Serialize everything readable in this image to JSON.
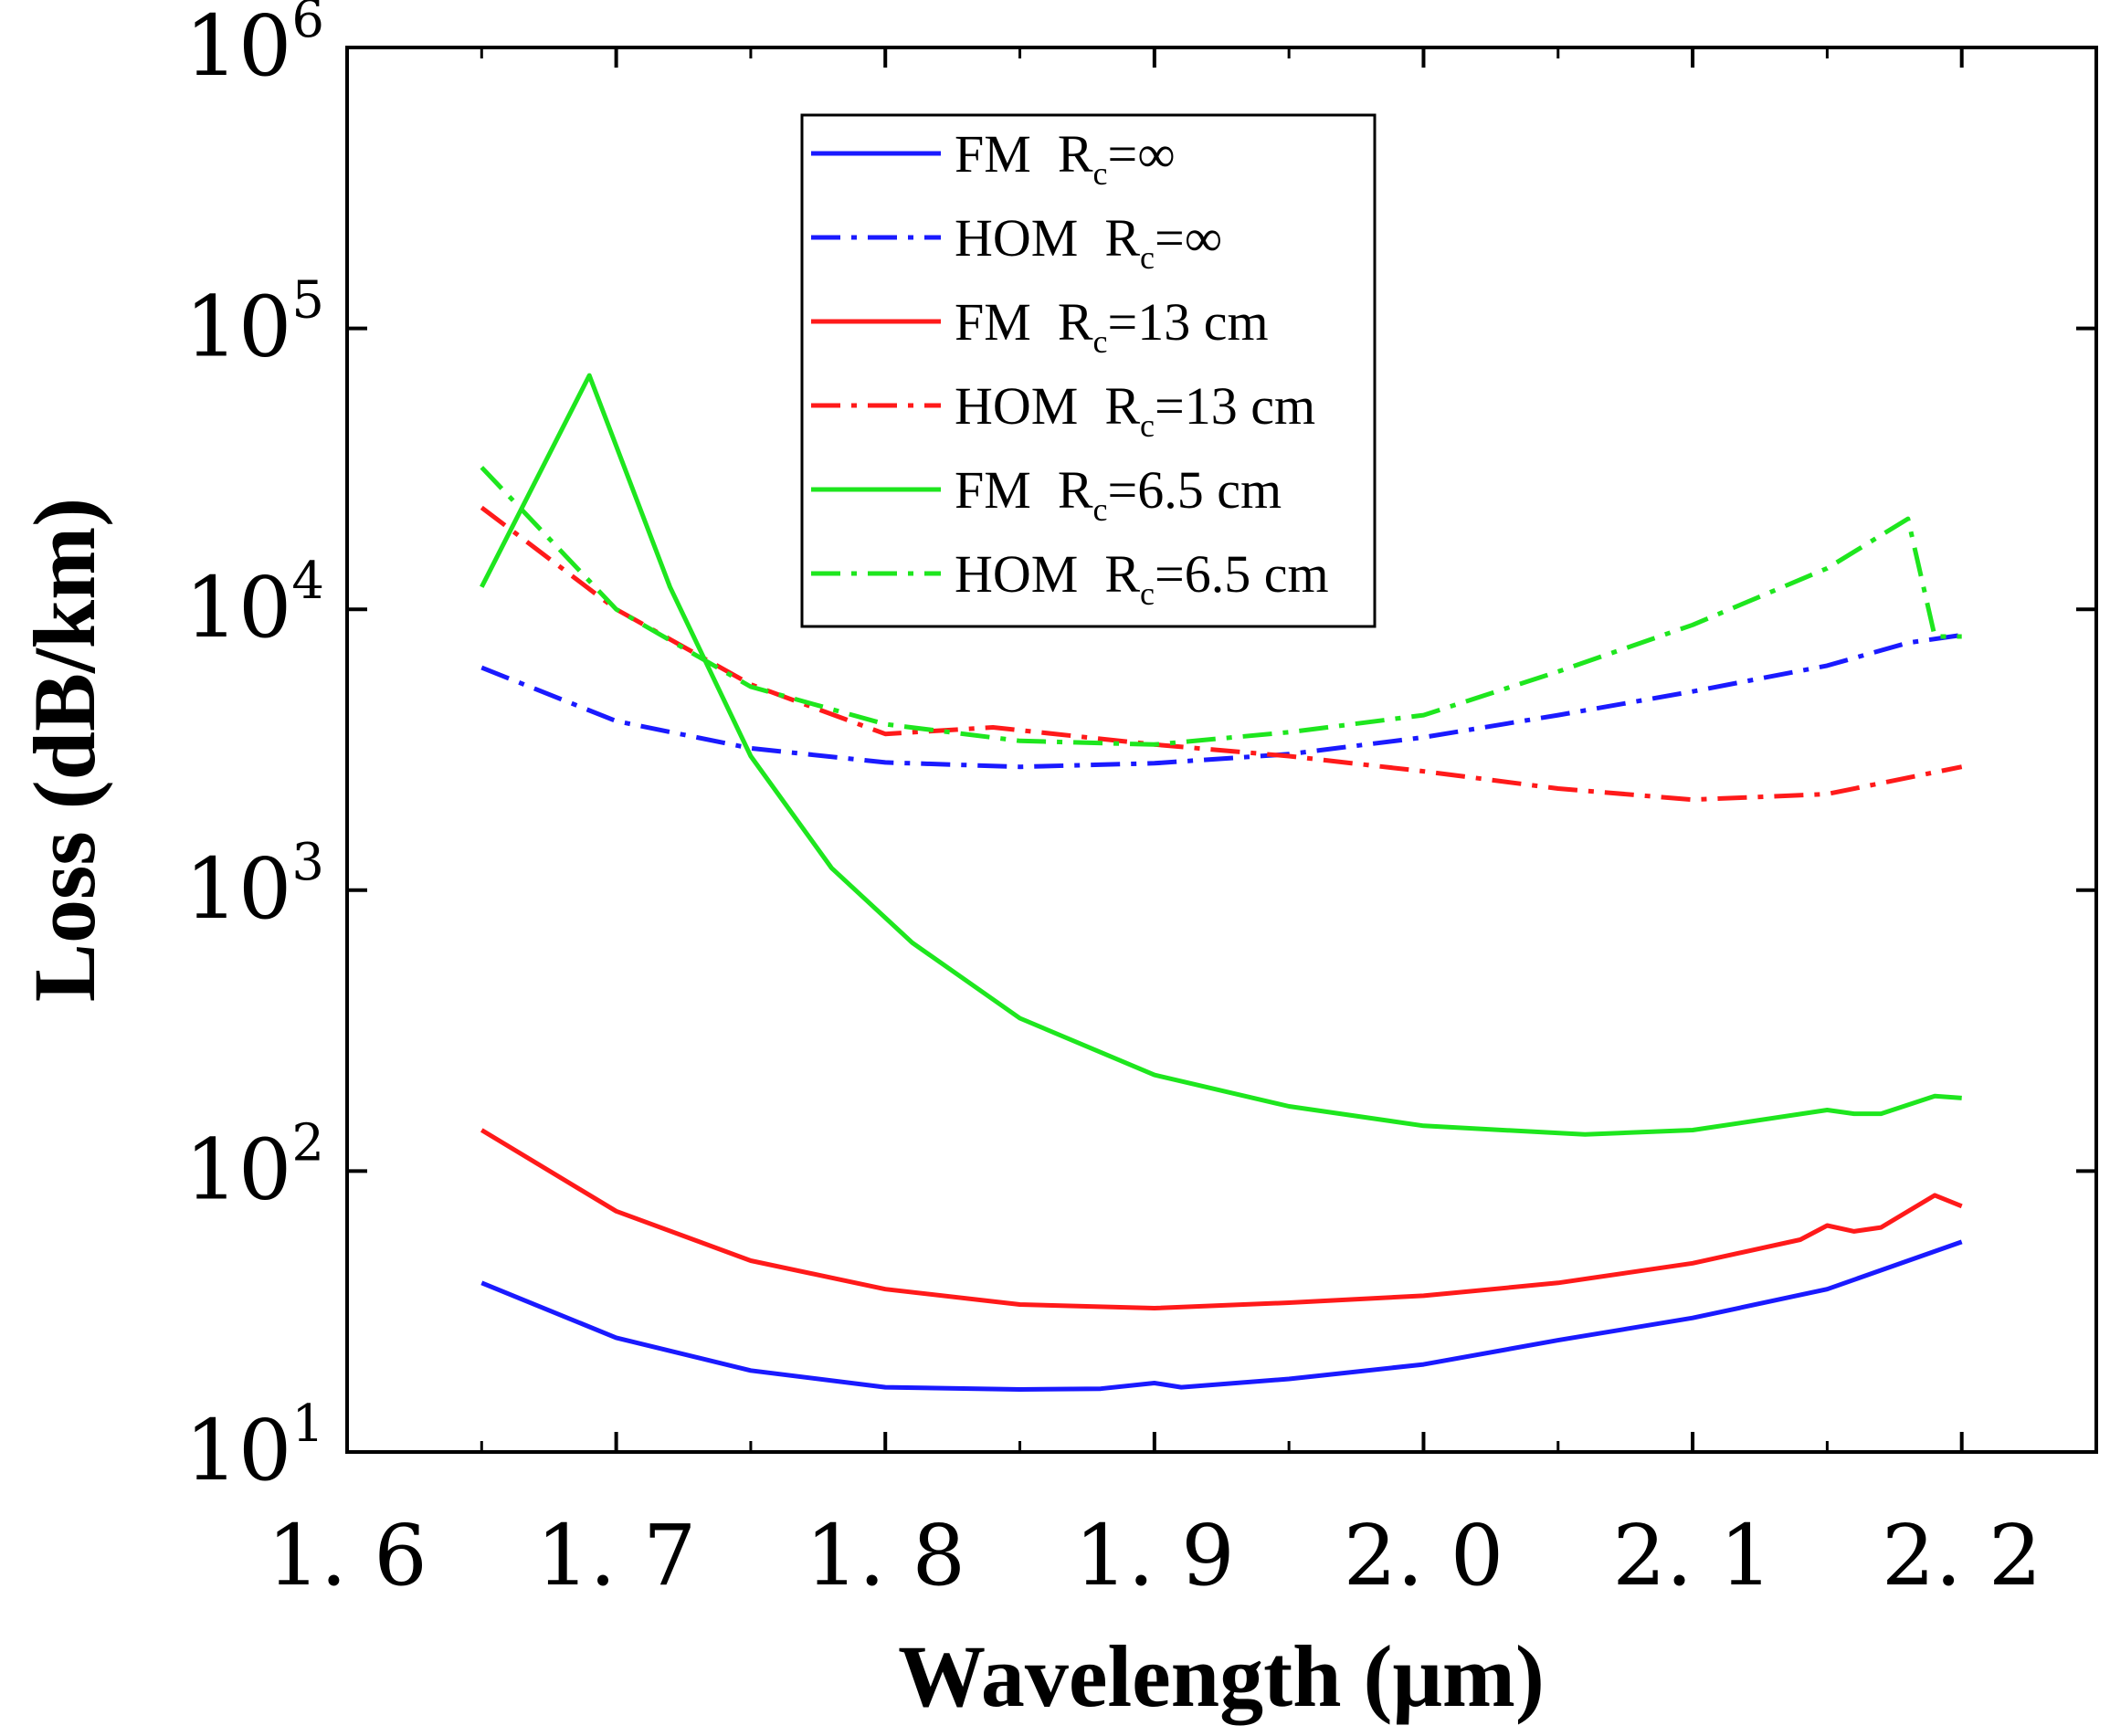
{
  "chart_data": {
    "type": "line",
    "title": "",
    "xlabel": "Wavelength (μm)",
    "ylabel": "Loss (dB/km)",
    "xlim": [
      1.6,
      2.25
    ],
    "ylim": [
      10,
      1000000
    ],
    "yscale": "log",
    "x_ticks": [
      {
        "v": 1.6,
        "label": "1. 6"
      },
      {
        "v": 1.7,
        "label": "1. 7"
      },
      {
        "v": 1.8,
        "label": "1. 8"
      },
      {
        "v": 1.9,
        "label": "1. 9"
      },
      {
        "v": 2.0,
        "label": "2. 0"
      },
      {
        "v": 2.1,
        "label": "2. 1"
      },
      {
        "v": 2.2,
        "label": "2. 2"
      }
    ],
    "y_ticks": [
      {
        "v": 10,
        "base": "10",
        "exp": "1"
      },
      {
        "v": 100,
        "base": "10",
        "exp": "2"
      },
      {
        "v": 1000,
        "base": "10",
        "exp": "3"
      },
      {
        "v": 10000,
        "base": "10",
        "exp": "4"
      },
      {
        "v": 100000,
        "base": "10",
        "exp": "5"
      },
      {
        "v": 1000000,
        "base": "10",
        "exp": "6"
      }
    ],
    "legend_position": "top-center",
    "series": [
      {
        "name": "FM  R_c=∞",
        "mode": "FM",
        "rc": "=∞",
        "color": "#1a1aff",
        "dash": "solid",
        "x": [
          1.65,
          1.7,
          1.75,
          1.8,
          1.85,
          1.88,
          1.9,
          1.91,
          1.95,
          2.0,
          2.05,
          2.1,
          2.15,
          2.2
        ],
        "values": [
          40,
          25.5,
          19.5,
          17,
          16.7,
          16.8,
          17.6,
          17,
          18.2,
          20.5,
          25,
          30,
          38,
          56
        ]
      },
      {
        "name": "HOM  R_c=∞",
        "mode": "HOM",
        "rc": "=∞",
        "color": "#1a1aff",
        "dash": "dashdot",
        "x": [
          1.65,
          1.7,
          1.75,
          1.8,
          1.85,
          1.9,
          1.95,
          2.0,
          2.05,
          2.1,
          2.15,
          2.18,
          2.2
        ],
        "values": [
          6200,
          4000,
          3200,
          2850,
          2750,
          2830,
          3050,
          3500,
          4200,
          5100,
          6300,
          7600,
          8100
        ]
      },
      {
        "name": "FM  R_c=13 cm",
        "mode": "FM",
        "rc": "=13 cm",
        "color": "#ff1a1a",
        "dash": "solid",
        "x": [
          1.65,
          1.7,
          1.75,
          1.8,
          1.85,
          1.9,
          1.95,
          2.0,
          2.05,
          2.1,
          2.14,
          2.15,
          2.16,
          2.17,
          2.19,
          2.2
        ],
        "values": [
          140,
          72,
          48,
          38,
          33.5,
          32.5,
          34,
          36,
          40,
          47,
          57,
          64,
          61,
          63,
          82,
          75
        ]
      },
      {
        "name": "HOM  R_c=13 cm",
        "mode": "HOM",
        "rc": "=13 cm",
        "color": "#ff1a1a",
        "dash": "dashdot",
        "x": [
          1.65,
          1.7,
          1.75,
          1.8,
          1.84,
          1.9,
          1.95,
          2.0,
          2.05,
          2.1,
          2.15,
          2.2
        ],
        "values": [
          23000,
          10000,
          5400,
          3600,
          3800,
          3300,
          3000,
          2650,
          2300,
          2100,
          2200,
          2750
        ]
      },
      {
        "name": "FM  R_c=6.5 cm",
        "mode": "FM",
        "rc": "=6.5 cm",
        "color": "#1ee61e",
        "dash": "solid",
        "x": [
          1.65,
          1.69,
          1.72,
          1.75,
          1.78,
          1.81,
          1.85,
          1.9,
          1.95,
          2.0,
          2.06,
          2.1,
          2.15,
          2.16,
          2.17,
          2.19,
          2.2
        ],
        "values": [
          12000,
          68000,
          12000,
          3000,
          1200,
          650,
          350,
          220,
          170,
          145,
          135,
          140,
          165,
          160,
          160,
          185,
          182
        ]
      },
      {
        "name": "HOM  R_c=6.5 cm",
        "mode": "HOM",
        "rc": "=6.5 cm",
        "color": "#1ee61e",
        "dash": "dashdot",
        "x": [
          1.65,
          1.7,
          1.75,
          1.8,
          1.85,
          1.9,
          1.95,
          2.0,
          2.05,
          2.1,
          2.15,
          2.18,
          2.19,
          2.2
        ],
        "values": [
          32000,
          10000,
          5300,
          3900,
          3400,
          3300,
          3650,
          4200,
          6000,
          8800,
          14000,
          21000,
          8000,
          8000
        ]
      }
    ]
  }
}
